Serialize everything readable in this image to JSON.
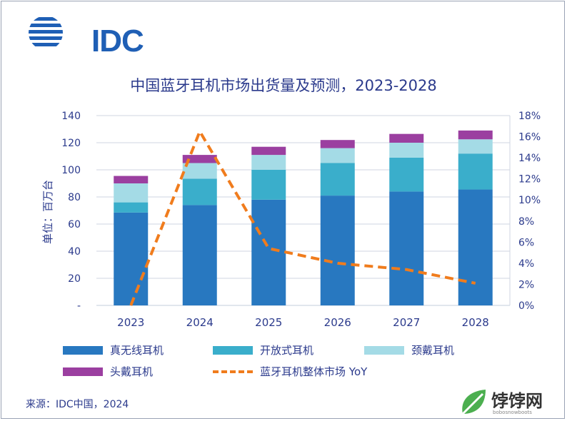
{
  "header": {
    "logo_text": "IDC"
  },
  "source": "来源：IDC中国，2024",
  "watermark": {
    "title": "饽饽网",
    "subtitle": "bobosnowboots"
  },
  "colors": {
    "true_wireless": "#2878c0",
    "open": "#3aaecb",
    "neckband": "#a4dbe6",
    "headphone": "#9b3fa0",
    "yoy": "#f07c1d",
    "text": "#2b3a8c",
    "grid": "#cfd6e2"
  },
  "chart_data": {
    "type": "bar",
    "title": "中国蓝牙耳机市场出货量及预测，2023-2028",
    "ylabel": "单位：百万台",
    "categories": [
      "2023",
      "2024",
      "2025",
      "2026",
      "2027",
      "2028"
    ],
    "ylim": [
      0,
      140
    ],
    "y_ticks": [
      "-",
      "20",
      "40",
      "60",
      "80",
      "100",
      "120",
      "140"
    ],
    "y2lim": [
      0,
      18
    ],
    "y2_ticks": [
      "0%",
      "2%",
      "4%",
      "6%",
      "8%",
      "10%",
      "12%",
      "14%",
      "16%",
      "18%"
    ],
    "stacked": true,
    "series": [
      {
        "name": "真无线耳机",
        "color": "#2878c0",
        "values": [
          68.5,
          74,
          78,
          81,
          84,
          85.5
        ]
      },
      {
        "name": "开放式耳机",
        "color": "#3aaecb",
        "values": [
          7.5,
          19.5,
          22,
          24,
          25,
          26.5
        ]
      },
      {
        "name": "颈戴耳机",
        "color": "#a4dbe6",
        "values": [
          14,
          11.5,
          11,
          11,
          11,
          10.5
        ]
      },
      {
        "name": "头戴耳机",
        "color": "#9b3fa0",
        "values": [
          5.5,
          6,
          6,
          6,
          6.5,
          6.5
        ]
      }
    ],
    "line_series": {
      "name": "蓝牙耳机整体市场 YoY",
      "color": "#f07c1d",
      "axis": "secondary",
      "values": [
        0.0,
        16.5,
        5.4,
        4.0,
        3.4,
        2.1
      ]
    },
    "legend_position": "bottom",
    "grid": true
  }
}
